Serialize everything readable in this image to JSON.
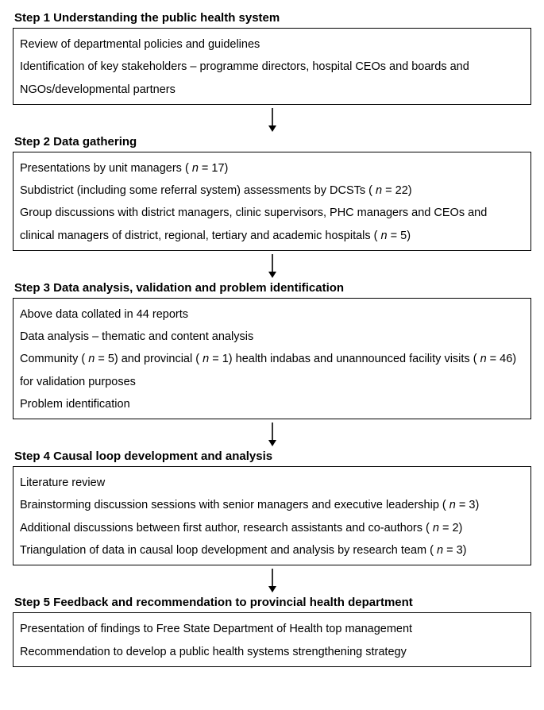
{
  "layout": {
    "box_border_color": "#000000",
    "background_color": "#ffffff",
    "text_color": "#000000",
    "title_fontsize": 15,
    "body_fontsize": 14.5,
    "arrow_color": "#000000"
  },
  "steps": [
    {
      "title": "Step 1 Understanding the public health system",
      "lines": [
        "Review of departmental policies and guidelines",
        "Identification of key stakeholders – programme directors, hospital CEOs and boards and NGOs/developmental partners"
      ]
    },
    {
      "title": "Step 2 Data gathering",
      "lines": [
        "Presentations by unit managers ( n = 17)",
        "Subdistrict (including some referral system) assessments by DCSTs ( n = 22)",
        "Group discussions with district managers, clinic supervisors, PHC managers and CEOs and clinical managers of district, regional, tertiary and academic hospitals ( n = 5)"
      ]
    },
    {
      "title": "Step 3 Data analysis, validation and problem identification",
      "lines": [
        "Above data collated in 44 reports",
        "Data analysis – thematic and content analysis",
        "Community ( n = 5) and provincial ( n = 1) health indabas and unannounced facility visits ( n = 46) for validation purposes",
        "Problem identification"
      ]
    },
    {
      "title": "Step 4 Causal loop development and analysis",
      "lines": [
        "Literature review",
        "Brainstorming discussion sessions with senior managers and executive leadership ( n = 3)",
        "Additional discussions between first author, research assistants and co-authors ( n = 2)",
        "Triangulation of data in causal loop development and analysis by research team ( n = 3)"
      ]
    },
    {
      "title": "Step 5 Feedback and recommendation to provincial health department",
      "lines": [
        "Presentation of findings to Free State Department of Health top management",
        "Recommendation to develop a public health systems strengthening strategy"
      ]
    }
  ]
}
